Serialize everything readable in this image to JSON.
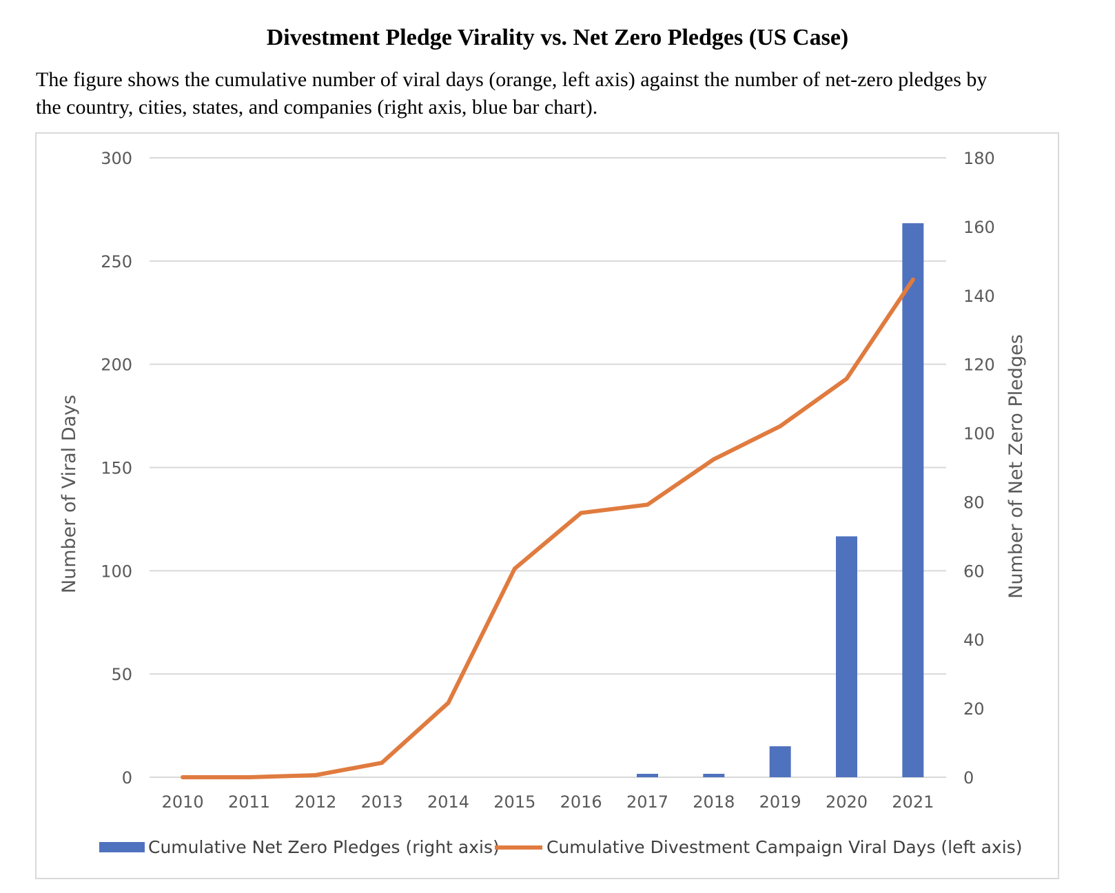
{
  "title": "Divestment Pledge Virality vs. Net Zero Pledges (US Case)",
  "caption_line1": "The figure shows the cumulative number of viral days (orange, left axis) against the number of net-zero pledges by",
  "caption_line2": "the country, cities, states, and companies (right axis, blue bar chart).",
  "colors": {
    "bar": "#4f72be",
    "line": "#e07b3f",
    "grid": "#d9d9d9",
    "text": "#595959"
  },
  "chart_data": {
    "type": "bar+line",
    "categories": [
      "2010",
      "2011",
      "2012",
      "2013",
      "2014",
      "2015",
      "2016",
      "2017",
      "2018",
      "2019",
      "2020",
      "2021"
    ],
    "series": [
      {
        "name": "Cumulative Net Zero Pledges (right axis)",
        "type": "bar",
        "axis": "right",
        "values": [
          0,
          0,
          0,
          0,
          0,
          0,
          0,
          1,
          1,
          9,
          70,
          161
        ]
      },
      {
        "name": "Cumulative Divestment Campaign Viral Days (left axis)",
        "type": "line",
        "axis": "left",
        "values": [
          0,
          0,
          1,
          7,
          36,
          101,
          128,
          132,
          154,
          170,
          193,
          241
        ]
      }
    ],
    "ylabel_left": "Number of Viral Days",
    "ylabel_right": "Number of Net Zero Pledges",
    "ylim_left": [
      0,
      300
    ],
    "yticks_left": [
      "0",
      "50",
      "100",
      "150",
      "200",
      "250",
      "300"
    ],
    "ylim_right": [
      0,
      180
    ],
    "yticks_right": [
      "0",
      "20",
      "40",
      "60",
      "80",
      "100",
      "120",
      "140",
      "160",
      "180"
    ],
    "grid": true,
    "legend_position": "bottom"
  }
}
